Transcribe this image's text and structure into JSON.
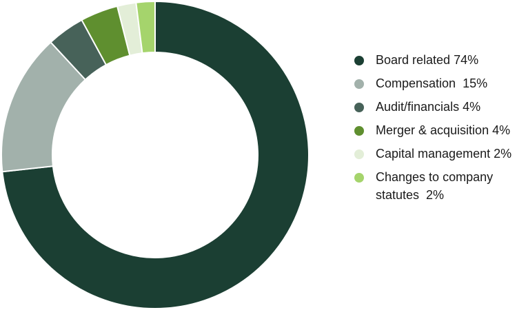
{
  "chart_data": {
    "type": "donut",
    "categories": [
      "Board related 74%",
      "Compensation  15%",
      "Audit/financials 4%",
      "Merger & acquisition 4%",
      "Capital management 2%",
      "Changes to company statutes  2%"
    ],
    "values": [
      74,
      15,
      4,
      4,
      2,
      2
    ],
    "colors": [
      "#1b3f33",
      "#a2b1ab",
      "#476259",
      "#5f8f2f",
      "#e3eed8",
      "#a5d46c"
    ]
  }
}
